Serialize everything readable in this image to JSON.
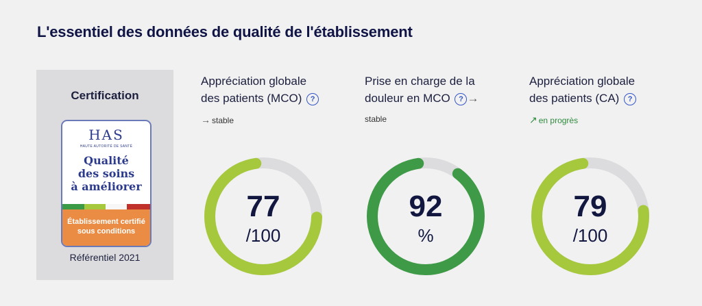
{
  "title": "L'essentiel des données de qualité de l'établissement",
  "certification": {
    "heading": "Certification",
    "badge": {
      "logo": "HAS",
      "logo_sub": "HAUTE AUTORITÉ DE SANTÉ",
      "line1": "Qualité",
      "line2": "des soins",
      "line3": "à améliorer",
      "footer_line1": "Établissement certifié",
      "footer_line2": "sous conditions"
    },
    "referential": "Référentiel 2021"
  },
  "metrics": [
    {
      "label_line1": "Appréciation globale",
      "label_line2": "des patients (MCO)",
      "help": "?",
      "trend": "stable",
      "trend_icon": "arrow-right-icon",
      "value": "77",
      "unit": "/100",
      "fraction": 0.77,
      "color": "#a6c83c"
    },
    {
      "label_line1": "Prise en charge de la",
      "label_line2": "douleur en MCO",
      "help": "?",
      "trend": "stable",
      "trend_icon": "arrow-right-icon",
      "value": "92",
      "unit": "%",
      "fraction": 0.92,
      "color": "#3f9a47"
    },
    {
      "label_line1": "Appréciation globale",
      "label_line2": "des patients (CA)",
      "help": "?",
      "trend": "en progrès",
      "trend_icon": "arrow-up-right-icon",
      "value": "79",
      "unit": "/100",
      "fraction": 0.79,
      "color": "#a6c83c"
    }
  ]
}
